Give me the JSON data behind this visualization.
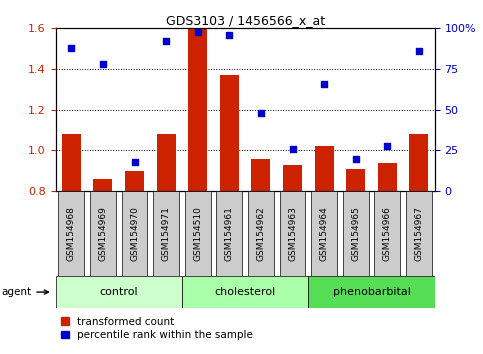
{
  "title": "GDS3103 / 1456566_x_at",
  "samples": [
    "GSM154968",
    "GSM154969",
    "GSM154970",
    "GSM154971",
    "GSM154510",
    "GSM154961",
    "GSM154962",
    "GSM154963",
    "GSM154964",
    "GSM154965",
    "GSM154966",
    "GSM154967"
  ],
  "bar_values": [
    1.08,
    0.86,
    0.9,
    1.08,
    1.6,
    1.37,
    0.96,
    0.93,
    1.02,
    0.91,
    0.94,
    1.08
  ],
  "dot_values": [
    88,
    78,
    18,
    92,
    98,
    96,
    48,
    26,
    66,
    20,
    28,
    86
  ],
  "bar_color": "#cc2200",
  "dot_color": "#0000cc",
  "ylim_left": [
    0.8,
    1.6
  ],
  "ylim_right": [
    0,
    100
  ],
  "yticks_left": [
    0.8,
    1.0,
    1.2,
    1.4,
    1.6
  ],
  "yticks_right": [
    0,
    25,
    50,
    75,
    100
  ],
  "groups": [
    {
      "label": "control",
      "start": 0,
      "end": 4,
      "color": "#ccffcc"
    },
    {
      "label": "cholesterol",
      "start": 4,
      "end": 8,
      "color": "#aaffaa"
    },
    {
      "label": "phenobarbital",
      "start": 8,
      "end": 12,
      "color": "#55dd55"
    }
  ],
  "agent_label": "agent",
  "legend_bar": "transformed count",
  "legend_dot": "percentile rank within the sample",
  "bar_bottom": 0.8,
  "dot_marker": "s",
  "dot_marker_size": 5,
  "grid_color": "#000000",
  "tick_label_color_left": "#cc2200",
  "tick_label_color_right": "#0000cc",
  "sample_box_color": "#cccccc",
  "fig_bg": "#ffffff"
}
